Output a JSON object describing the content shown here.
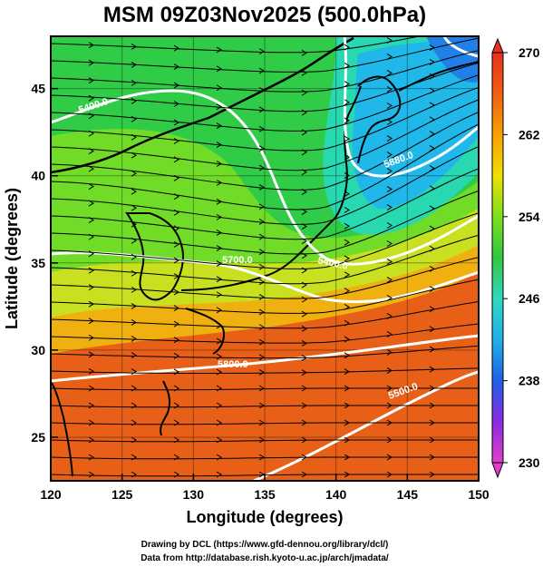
{
  "title": "MSM 09Z03Nov2025 (500.0hPa)",
  "map": {
    "xlabel": "Longitude (degrees)",
    "ylabel": "Latitude  (degrees)",
    "lon_range": [
      120,
      150
    ],
    "lat_range": [
      22.5,
      48
    ],
    "lon_ticks": [
      "120",
      "125",
      "130",
      "135",
      "140",
      "145",
      "150"
    ],
    "lat_ticks": [
      "25",
      "30",
      "35",
      "40",
      "45"
    ],
    "contour_labels": [
      "5400.0",
      "5700.0",
      "5800.0",
      "5500.0",
      "5400.0",
      "5880.0"
    ]
  },
  "colorbar": {
    "min": 230,
    "max": 270,
    "tick_labels": [
      "270",
      "262",
      "254",
      "246",
      "238",
      "230"
    ],
    "colors": [
      "#e040c8",
      "#8a2be2",
      "#2060e8",
      "#20b0e8",
      "#30d8c0",
      "#30c840",
      "#7ce01c",
      "#f0e000",
      "#f8a000",
      "#f06010",
      "#e83020"
    ]
  },
  "credits": {
    "line1": "Drawing by DCL (https://www.gfd-dennou.org/library/dcl/)",
    "line2": "Data from http://database.rish.kyoto-u.ac.jp/arch/jmadata/"
  }
}
